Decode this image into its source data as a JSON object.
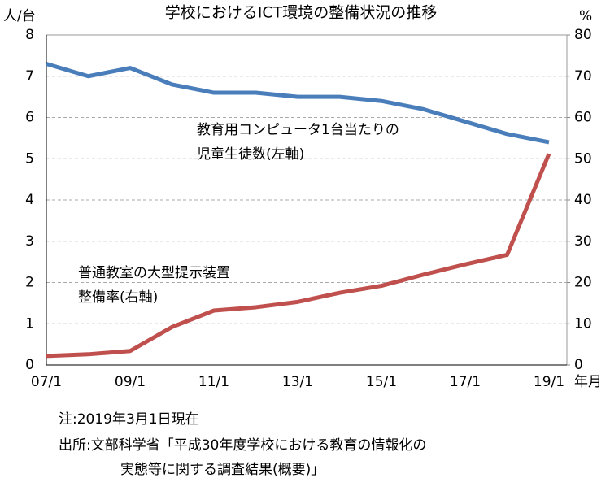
{
  "chart_data": {
    "type": "line",
    "title": "学校におけるICT環境の整備状況の推移",
    "y_label": "人/台",
    "y2_label": "%",
    "x_label": "年月",
    "categories": [
      "07/1",
      null,
      "09/1",
      null,
      "11/1",
      null,
      "13/1",
      null,
      "15/1",
      null,
      "17/1",
      null,
      "19/1"
    ],
    "series": [
      {
        "name": [
          "教育用コンピュータ1台当たりの",
          "児童生徒数(左軸)"
        ],
        "color": "#4a7ebb",
        "values": [
          7.3,
          7.0,
          7.2,
          6.8,
          6.6,
          6.6,
          6.5,
          6.5,
          6.4,
          6.2,
          5.9,
          5.6,
          5.4
        ]
      },
      {
        "name": [
          "普通教室の大型提示装置",
          "整備率(右軸)"
        ],
        "color": "#c0504d",
        "axis": "y2",
        "values": [
          2.2,
          2.6,
          3.4,
          9.2,
          13.2,
          14.0,
          15.3,
          17.5,
          19.2,
          21.9,
          24.4,
          26.7,
          51.2
        ]
      }
    ],
    "ylim": [
      0,
      8
    ],
    "yticks": [
      0,
      1,
      2,
      3,
      4,
      5,
      6,
      7,
      8
    ],
    "y2lim": [
      0,
      80
    ],
    "y2ticks": [
      0,
      10,
      20,
      30,
      40,
      50,
      60,
      70,
      80
    ],
    "grid": true
  },
  "notes": [
    "注:2019年3月1日現在",
    "出所:文部科学省「平成30年度学校における教育の情報化の",
    "実態等に関する調査結果(概要)」"
  ]
}
